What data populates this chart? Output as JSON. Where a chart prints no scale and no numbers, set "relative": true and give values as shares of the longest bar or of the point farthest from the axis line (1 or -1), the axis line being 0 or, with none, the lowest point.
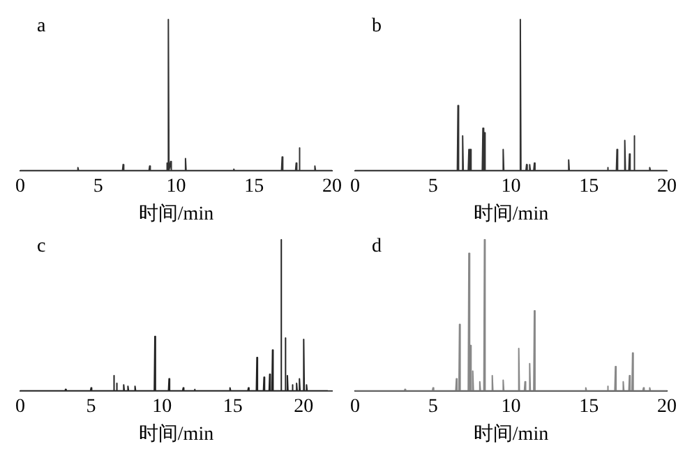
{
  "chart_data": [
    {
      "type": "line",
      "title": "a",
      "color": "#333333",
      "xlabel": "时间/min",
      "xlim": [
        0,
        20
      ],
      "xticks": [
        0,
        5,
        10,
        15,
        20
      ],
      "relative": true,
      "tick_labels": "x",
      "x": [
        0,
        3.66,
        3.7,
        3.74,
        6.56,
        6.6,
        6.64,
        8.26,
        8.3,
        8.34,
        9.36,
        9.4,
        9.44,
        9.46,
        9.5,
        9.54,
        9.61,
        9.65,
        9.69,
        10.56,
        10.6,
        10.64,
        13.66,
        13.7,
        13.74,
        16.76,
        16.8,
        16.84,
        17.66,
        17.7,
        17.74,
        17.86,
        17.9,
        17.94,
        18.86,
        18.9,
        18.94,
        20
      ],
      "values": [
        0,
        0,
        0.02,
        0,
        0,
        0.04,
        0,
        0,
        0.03,
        0,
        0,
        0.05,
        0,
        0,
        1,
        0,
        0,
        0.06,
        0,
        0,
        0.08,
        0,
        0,
        0.01,
        0,
        0,
        0.09,
        0,
        0,
        0.05,
        0,
        0,
        0.15,
        0,
        0,
        0.03,
        0,
        0
      ]
    },
    {
      "type": "line",
      "title": "b",
      "color": "#333333",
      "xlabel": "时间/min",
      "xlim": [
        0,
        20
      ],
      "xticks": [
        0,
        5,
        10,
        15,
        20
      ],
      "relative": true,
      "tick_labels": "x",
      "x": [
        0,
        6.56,
        6.6,
        6.64,
        6.86,
        6.9,
        6.94,
        7.26,
        7.3,
        7.34,
        7.36,
        7.4,
        7.44,
        8.16,
        8.2,
        8.24,
        8.26,
        8.3,
        8.34,
        9.46,
        9.5,
        9.54,
        10.56,
        10.6,
        10.64,
        10.96,
        11,
        11.04,
        11.16,
        11.2,
        11.24,
        11.46,
        11.5,
        11.54,
        13.66,
        13.7,
        13.74,
        16.16,
        16.2,
        16.24,
        16.76,
        16.8,
        16.84,
        17.26,
        17.3,
        17.34,
        17.56,
        17.6,
        17.64,
        17.86,
        17.9,
        17.94,
        18.86,
        18.9,
        18.94,
        20
      ],
      "values": [
        0,
        0,
        0.43,
        0,
        0,
        0.23,
        0,
        0,
        0.14,
        0,
        0,
        0.14,
        0,
        0,
        0.28,
        0,
        0,
        0.25,
        0,
        0,
        0.14,
        0,
        0,
        1,
        0,
        0,
        0.04,
        0,
        0,
        0.04,
        0,
        0,
        0.05,
        0,
        0,
        0.07,
        0,
        0,
        0.02,
        0,
        0,
        0.14,
        0,
        0,
        0.2,
        0,
        0,
        0.11,
        0,
        0,
        0.23,
        0,
        0,
        0.02,
        0,
        0
      ]
    },
    {
      "type": "line",
      "title": "c",
      "color": "#222222",
      "xlabel": "时间/min",
      "xlim": [
        0,
        22
      ],
      "xticks": [
        0,
        5,
        10,
        15,
        20
      ],
      "relative": true,
      "tick_labels": "x",
      "x": [
        0,
        3.16,
        3.2,
        3.24,
        4.96,
        5,
        5.04,
        6.56,
        6.6,
        6.64,
        6.76,
        6.8,
        6.84,
        7.26,
        7.3,
        7.34,
        7.56,
        7.6,
        7.64,
        8.06,
        8.1,
        8.14,
        9.46,
        9.5,
        9.54,
        10.46,
        10.5,
        10.54,
        11.46,
        11.5,
        11.54,
        12.26,
        12.3,
        12.34,
        14.76,
        14.8,
        14.84,
        16.06,
        16.1,
        16.14,
        16.66,
        16.7,
        16.74,
        17.16,
        17.2,
        17.24,
        17.56,
        17.6,
        17.64,
        17.76,
        17.8,
        17.84,
        18.36,
        18.4,
        18.44,
        18.66,
        18.7,
        18.74,
        18.81,
        18.85,
        18.89,
        19.16,
        19.2,
        19.24,
        19.46,
        19.5,
        19.54,
        19.66,
        19.7,
        19.74,
        19.96,
        20,
        20.04,
        20.16,
        20.2,
        20.24,
        21.7
      ],
      "values": [
        0,
        0,
        0.01,
        0,
        0,
        0.02,
        0,
        0,
        0.1,
        0,
        0,
        0.05,
        0,
        0,
        0.04,
        0,
        0,
        0.03,
        0,
        0,
        0.03,
        0,
        0,
        0.36,
        0,
        0,
        0.08,
        0,
        0,
        0.02,
        0,
        0,
        0.01,
        0,
        0,
        0.02,
        0,
        0,
        0.02,
        0,
        0,
        0.22,
        0,
        0,
        0.09,
        0,
        0,
        0.11,
        0,
        0,
        0.27,
        0,
        0,
        1,
        0,
        0,
        0.35,
        0,
        0,
        0.1,
        0,
        0,
        0.04,
        0,
        0,
        0.05,
        0,
        0,
        0.08,
        0,
        0,
        0.34,
        0,
        0,
        0.04,
        0,
        0
      ]
    },
    {
      "type": "line",
      "title": "d",
      "color": "#888888",
      "xlabel": "时间/min",
      "xlim": [
        0,
        20
      ],
      "xticks": [
        0,
        5,
        10,
        15,
        20
      ],
      "relative": true,
      "tick_labels": "x",
      "x": [
        0,
        3.16,
        3.2,
        3.24,
        4.96,
        5,
        5.04,
        6.46,
        6.5,
        6.54,
        6.66,
        6.7,
        6.74,
        7.26,
        7.3,
        7.34,
        7.36,
        7.4,
        7.44,
        7.51,
        7.55,
        7.59,
        7.96,
        8,
        8.04,
        8.26,
        8.3,
        8.34,
        8.76,
        8.8,
        8.84,
        9.46,
        9.5,
        9.54,
        10.46,
        10.5,
        10.54,
        10.86,
        10.9,
        10.94,
        11.16,
        11.2,
        11.24,
        11.46,
        11.5,
        11.54,
        14.76,
        14.8,
        14.84,
        16.16,
        16.2,
        16.24,
        16.66,
        16.7,
        16.74,
        17.16,
        17.2,
        17.24,
        17.56,
        17.6,
        17.64,
        17.76,
        17.8,
        17.84,
        18.46,
        18.5,
        18.54,
        18.86,
        18.9,
        18.94,
        20
      ],
      "values": [
        0,
        0,
        0.01,
        0,
        0,
        0.02,
        0,
        0,
        0.08,
        0,
        0,
        0.44,
        0,
        0,
        0.91,
        0,
        0,
        0.3,
        0,
        0,
        0.13,
        0,
        0,
        0.06,
        0,
        0,
        1,
        0,
        0,
        0.1,
        0,
        0,
        0.07,
        0,
        0,
        0.28,
        0,
        0,
        0.06,
        0,
        0,
        0.18,
        0,
        0,
        0.53,
        0,
        0,
        0.02,
        0,
        0,
        0.03,
        0,
        0,
        0.16,
        0,
        0,
        0.06,
        0,
        0,
        0.1,
        0,
        0,
        0.25,
        0,
        0,
        0.02,
        0,
        0,
        0.02,
        0,
        0
      ]
    }
  ]
}
